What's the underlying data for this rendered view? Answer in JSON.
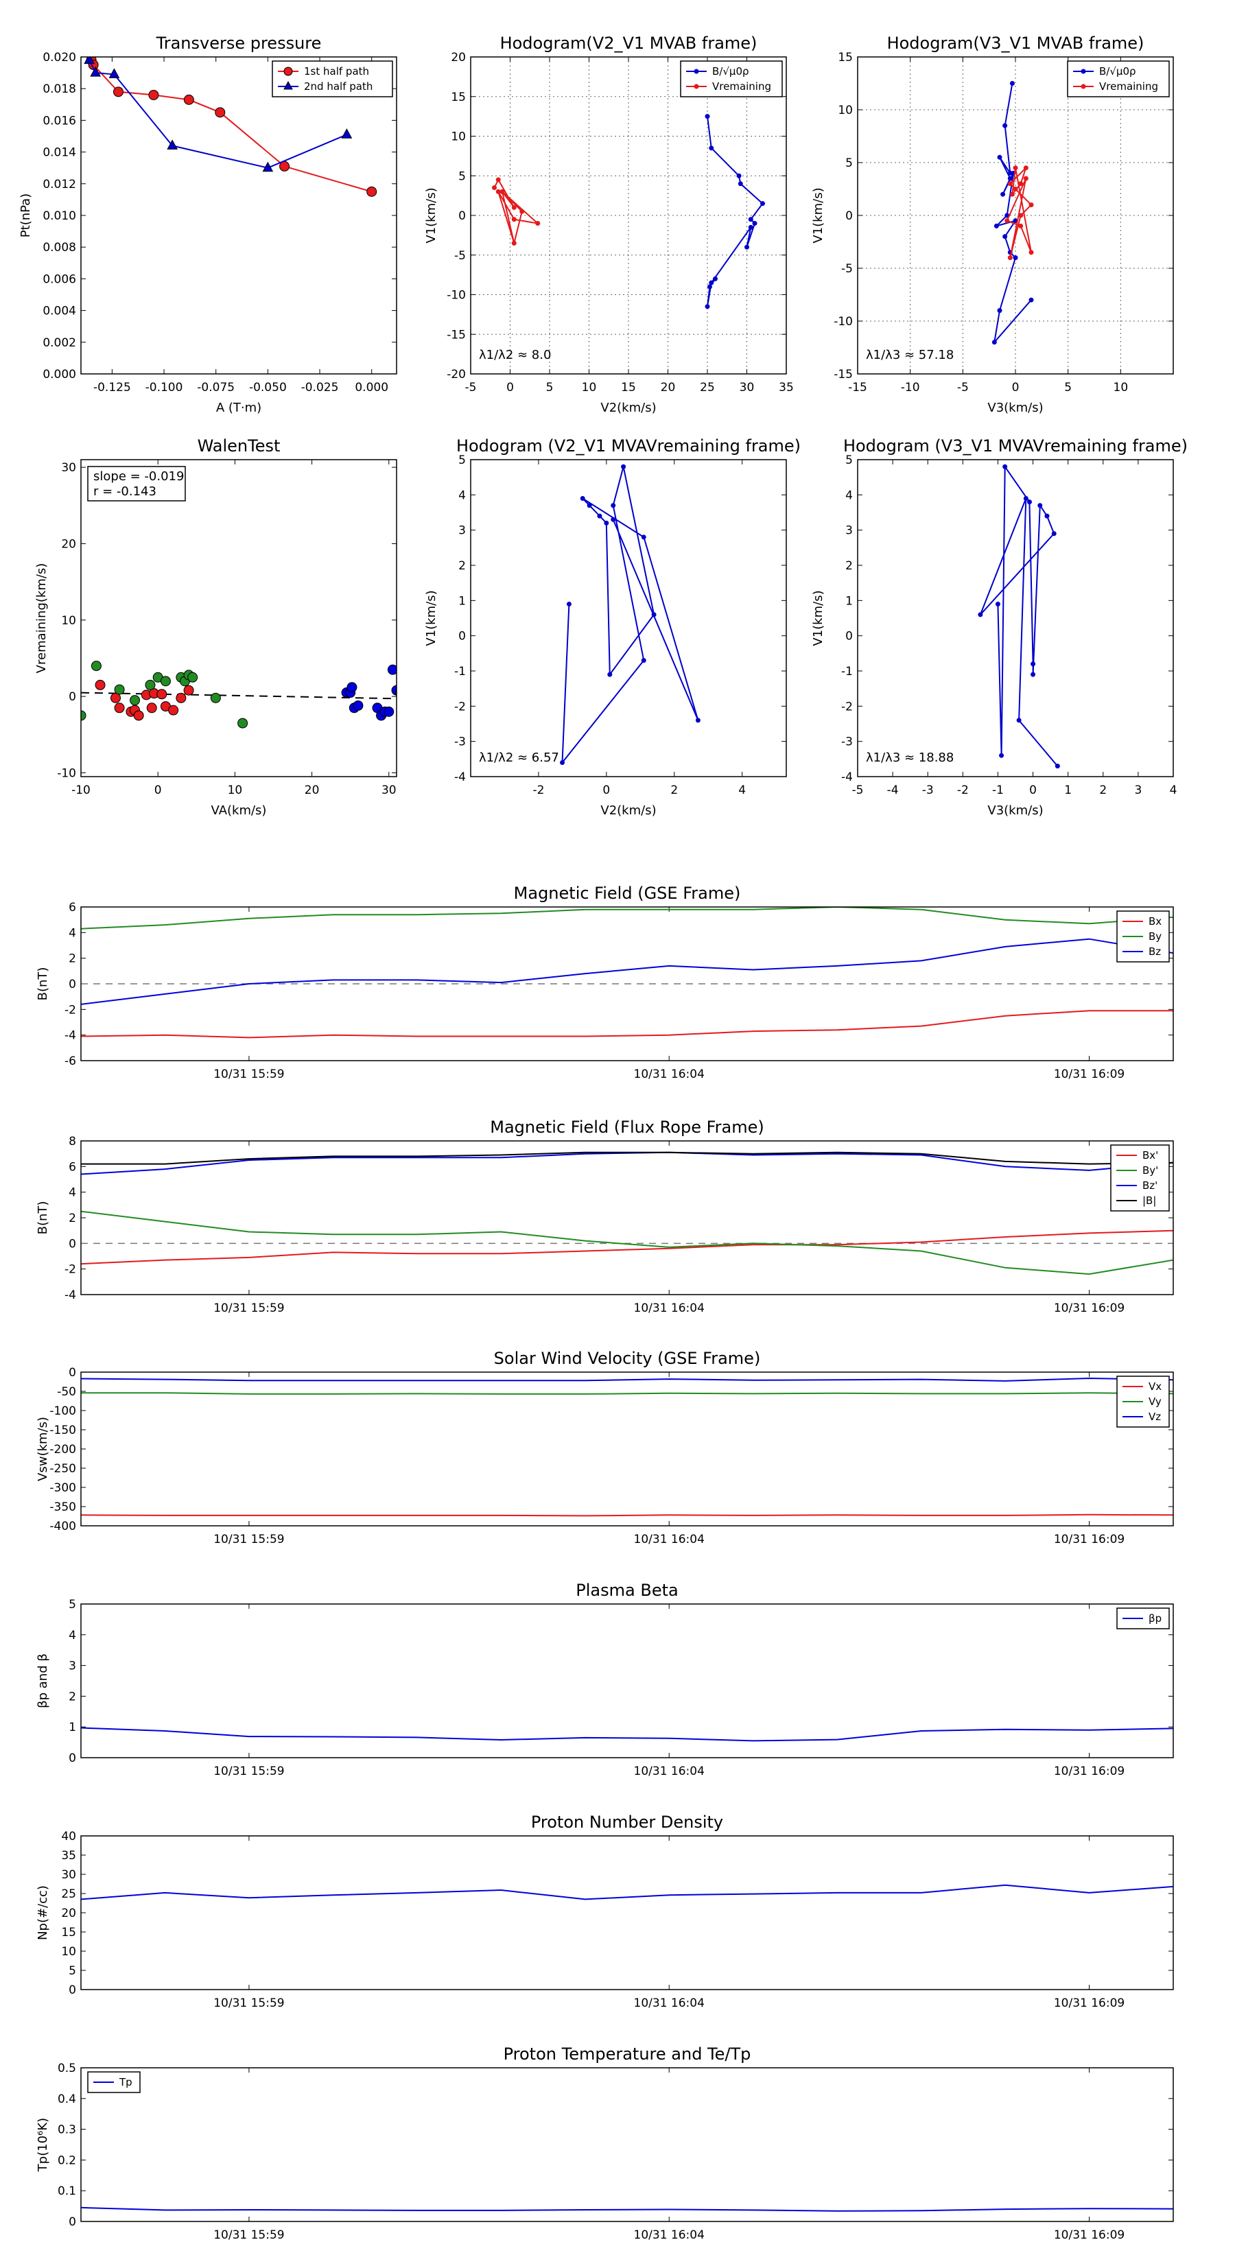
{
  "chart_data": [
    {
      "id": "tp",
      "type": "scatter",
      "title": "Transverse pressure",
      "xlabel": "A (T·m)",
      "ylabel": "Pt(nPa)",
      "xlim": [
        -0.14,
        0.012
      ],
      "ylim": [
        0.0,
        0.02
      ],
      "grid": false,
      "xticks": [
        -0.125,
        -0.1,
        -0.075,
        -0.05,
        -0.025,
        0.0
      ],
      "yticks": [
        0.0,
        0.002,
        0.004,
        0.006,
        0.008,
        0.01,
        0.012,
        0.014,
        0.016,
        0.018,
        0.02
      ],
      "x_format": 3,
      "y_format": 3,
      "legend": {
        "placement": "top-right"
      },
      "series": [
        {
          "name": "1st half path",
          "color": "#e41a1c",
          "marker": "circle",
          "x": [
            -0.135,
            -0.134,
            -0.122,
            -0.105,
            -0.088,
            -0.073,
            -0.042,
            0.0
          ],
          "y": [
            0.0198,
            0.0195,
            0.0178,
            0.0176,
            0.0173,
            0.0165,
            0.0131,
            0.0115
          ]
        },
        {
          "name": "2nd half path",
          "color": "#0000cc",
          "marker": "triangle",
          "x": [
            -0.136,
            -0.133,
            -0.124,
            -0.096,
            -0.05,
            -0.012
          ],
          "y": [
            0.0198,
            0.019,
            0.0189,
            0.0144,
            0.013,
            0.0151
          ]
        }
      ]
    },
    {
      "id": "h1",
      "type": "line",
      "title": "Hodogram(V2_V1 MVAB frame)",
      "xlabel": "V2(km/s)",
      "ylabel": "V1(km/s)",
      "xlim": [
        -5,
        35
      ],
      "ylim": [
        -20,
        20
      ],
      "grid": true,
      "xticks": [
        -5,
        0,
        5,
        10,
        15,
        20,
        25,
        30,
        35
      ],
      "yticks": [
        -20,
        -15,
        -10,
        -5,
        0,
        5,
        10,
        15,
        20
      ],
      "annotation": "λ1/λ2 ≈ 8.0",
      "annotation_pos": "bottom-left",
      "legend": {
        "placement": "top-right"
      },
      "series": [
        {
          "name": "B/√μ0ρ",
          "color": "#0000cc",
          "marker": "dot",
          "x": [
            25.0,
            25.5,
            29.0,
            29.2,
            32.0,
            30.5,
            31.0,
            30.0,
            30.5,
            25.5,
            25.0,
            25.3,
            26.0
          ],
          "y": [
            12.5,
            8.5,
            5.0,
            4.0,
            1.5,
            -0.5,
            -1.0,
            -4.0,
            -1.5,
            -8.5,
            -11.5,
            -9.0,
            -8.0
          ]
        },
        {
          "name": "Vremaining",
          "color": "#e41a1c",
          "marker": "dot",
          "x": [
            -2.0,
            -1.5,
            0.5,
            -1.0,
            1.5,
            0.5,
            -1.5,
            0.5,
            3.5,
            -1.0,
            0.5
          ],
          "y": [
            3.5,
            4.5,
            1.0,
            3.0,
            0.5,
            -3.5,
            3.0,
            -0.5,
            -1.0,
            3.0,
            -3.5
          ]
        }
      ]
    },
    {
      "id": "h2",
      "type": "line",
      "title": "Hodogram(V3_V1 MVAB frame)",
      "xlabel": "V3(km/s)",
      "ylabel": "V1(km/s)",
      "xlim": [
        -15,
        15
      ],
      "ylim": [
        -15,
        15
      ],
      "grid": true,
      "xticks": [
        -15,
        -10,
        -5,
        0,
        5,
        10
      ],
      "yticks": [
        -15,
        -10,
        -5,
        0,
        5,
        10,
        15
      ],
      "annotation": "λ1/λ3 ≈ 57.18",
      "annotation_pos": "bottom-left",
      "legend": {
        "placement": "top-right"
      },
      "series": [
        {
          "name": "B/√μ0ρ",
          "color": "#0000cc",
          "marker": "dot",
          "x": [
            -0.3,
            -1.0,
            -0.5,
            -1.5,
            -0.5,
            -1.2,
            -0.2,
            -0.8,
            -1.8,
            0.0,
            -1.0,
            -0.5,
            0.0,
            -1.5,
            -2.0,
            1.5
          ],
          "y": [
            12.5,
            8.5,
            4.0,
            5.5,
            3.5,
            2.0,
            4.0,
            0.0,
            -1.0,
            -0.5,
            -2.0,
            -3.5,
            -4.0,
            -9.0,
            -12.0,
            -8.0
          ]
        },
        {
          "name": "Vremaining",
          "color": "#e41a1c",
          "marker": "dot",
          "x": [
            0.5,
            1.0,
            -0.5,
            0.0,
            1.5,
            0.5,
            -0.5,
            1.0,
            -0.8,
            0.5,
            1.5,
            0.0,
            -0.3,
            0.5
          ],
          "y": [
            3.0,
            4.5,
            3.0,
            2.5,
            1.0,
            0.0,
            -4.0,
            3.5,
            -0.5,
            -1.0,
            -3.5,
            4.5,
            2.0,
            3.0
          ]
        }
      ]
    },
    {
      "id": "wt",
      "type": "scatter",
      "title": "WalenTest",
      "xlabel": "VA(km/s)",
      "ylabel": "Vremaining(km/s)",
      "xlim": [
        -10,
        31
      ],
      "ylim": [
        -10.5,
        31
      ],
      "grid": false,
      "xticks": [
        -10,
        0,
        10,
        20,
        30
      ],
      "yticks": [
        -10,
        0,
        10,
        20,
        30
      ],
      "annotation": [
        "slope = -0.019",
        "r = -0.143"
      ],
      "annotation_pos": "top-left",
      "fit": {
        "slope": -0.019,
        "intercept": 0.3
      },
      "series": [
        {
          "name": "",
          "color": "#e41a1c",
          "marker": "circle",
          "x": [
            -7.5,
            -5.5,
            -5.0,
            -3.5,
            -3.0,
            -2.5,
            -1.5,
            -0.8,
            -0.5,
            0.5,
            1.0,
            2.0,
            3.0,
            4.0
          ],
          "y": [
            1.5,
            -0.2,
            -1.5,
            -2.0,
            -1.8,
            -2.5,
            0.2,
            -1.5,
            0.4,
            0.3,
            -1.3,
            -1.8,
            -0.2,
            0.8
          ]
        },
        {
          "name": "",
          "color": "#228b22",
          "marker": "circle",
          "x": [
            -10.0,
            -8.0,
            -5.0,
            -3.0,
            -1.0,
            0.0,
            1.0,
            3.0,
            3.5,
            4.0,
            4.5,
            7.5,
            11.0
          ],
          "y": [
            -2.5,
            4.0,
            0.9,
            -0.5,
            1.5,
            2.5,
            2.0,
            2.5,
            2.0,
            2.8,
            2.5,
            -0.2,
            -3.5
          ]
        },
        {
          "name": "",
          "color": "#0000dd",
          "marker": "circle",
          "x": [
            24.5,
            25.0,
            25.2,
            25.5,
            26.0,
            28.5,
            29.0,
            29.5,
            30.0,
            30.5,
            31.0,
            31.5
          ],
          "y": [
            0.5,
            0.5,
            1.2,
            -1.5,
            -1.2,
            -1.5,
            -2.5,
            -2.0,
            -2.0,
            3.5,
            0.8,
            0.5
          ]
        }
      ]
    },
    {
      "id": "h3",
      "type": "line",
      "title": "Hodogram (V2_V1 MVAVremaining frame)",
      "xlabel": "V2(km/s)",
      "ylabel": "V1(km/s)",
      "xlim": [
        -4,
        5.3
      ],
      "ylim": [
        -4,
        5
      ],
      "grid": false,
      "xticks": [
        -2,
        0,
        2,
        4
      ],
      "yticks": [
        -4,
        -3,
        -2,
        -1,
        0,
        1,
        2,
        3,
        4,
        5
      ],
      "annotation": "λ1/λ2 ≈ 6.57",
      "annotation_pos": "bottom-left",
      "series": [
        {
          "name": "",
          "color": "#0000cc",
          "marker": "dot",
          "x": [
            -1.1,
            -1.3,
            1.1,
            0.2,
            0.5,
            1.4,
            0.1,
            0.0,
            -0.2,
            -0.5,
            -0.7,
            1.1,
            2.7,
            0.2
          ],
          "y": [
            0.9,
            -3.6,
            -0.7,
            3.7,
            4.8,
            0.6,
            -1.1,
            3.2,
            3.4,
            3.7,
            3.9,
            2.8,
            -2.4,
            3.3
          ]
        }
      ]
    },
    {
      "id": "h4",
      "type": "line",
      "title": "Hodogram (V3_V1 MVAVremaining frame)",
      "xlabel": "V3(km/s)",
      "ylabel": "V1(km/s)",
      "xlim": [
        -5,
        4
      ],
      "ylim": [
        -4,
        5
      ],
      "grid": false,
      "xticks": [
        -5,
        -4,
        -3,
        -2,
        -1,
        0,
        1,
        2,
        3,
        4
      ],
      "yticks": [
        -4,
        -3,
        -2,
        -1,
        0,
        1,
        2,
        3,
        4,
        5
      ],
      "annotation": "λ1/λ3 ≈ 18.88",
      "annotation_pos": "bottom-left",
      "series": [
        {
          "name": "",
          "color": "#0000cc",
          "marker": "dot",
          "x": [
            -1.0,
            -0.9,
            -0.8,
            -0.1,
            0.0,
            0.0,
            0.2,
            0.4,
            0.6,
            -1.5,
            -0.2,
            -0.4,
            0.7
          ],
          "y": [
            0.9,
            -3.4,
            4.8,
            3.8,
            -0.8,
            -1.1,
            3.7,
            3.4,
            2.9,
            0.6,
            3.9,
            -2.4,
            -3.7
          ]
        }
      ]
    },
    {
      "id": "mf",
      "type": "line",
      "title": "Magnetic Field (GSE Frame)",
      "ylabel": "B(nT)",
      "ylim": [
        -6,
        6
      ],
      "yticks": [
        -6,
        -4,
        -2,
        0,
        2,
        4,
        6
      ],
      "zero_line": true,
      "xlim": [
        0,
        13
      ],
      "xtick_pos": [
        2,
        7,
        12
      ],
      "xtick_labels": [
        "10/31 15:59",
        "10/31 16:04",
        "10/31 16:09"
      ],
      "legend": {
        "placement": "top-right"
      },
      "x": [
        0,
        1,
        2,
        3,
        4,
        5,
        6,
        7,
        8,
        9,
        10,
        11,
        12,
        13
      ],
      "series": [
        {
          "name": "Bx",
          "color": "#e41a1c",
          "values": [
            -4.1,
            -4.0,
            -4.2,
            -4.0,
            -4.1,
            -4.1,
            -4.1,
            -4.0,
            -3.7,
            -3.6,
            -3.3,
            -2.5,
            -2.1,
            -2.1
          ]
        },
        {
          "name": "By",
          "color": "#228b22",
          "values": [
            4.3,
            4.6,
            5.1,
            5.4,
            5.4,
            5.5,
            5.8,
            5.8,
            5.8,
            6.0,
            5.8,
            5.0,
            4.7,
            5.2
          ]
        },
        {
          "name": "Bz",
          "color": "#0000dd",
          "values": [
            -1.6,
            -0.8,
            0.0,
            0.3,
            0.3,
            0.1,
            0.8,
            1.4,
            1.1,
            1.4,
            1.8,
            2.9,
            3.5,
            2.4
          ]
        }
      ]
    },
    {
      "id": "mfr",
      "type": "line",
      "title": "Magnetic Field (Flux Rope Frame)",
      "ylabel": "B(nT)",
      "ylim": [
        -4,
        8
      ],
      "yticks": [
        -4,
        -2,
        0,
        2,
        4,
        6,
        8
      ],
      "zero_line": true,
      "xlim": [
        0,
        13
      ],
      "xtick_pos": [
        2,
        7,
        12
      ],
      "xtick_labels": [
        "10/31 15:59",
        "10/31 16:04",
        "10/31 16:09"
      ],
      "legend": {
        "placement": "top-right"
      },
      "x": [
        0,
        1,
        2,
        3,
        4,
        5,
        6,
        7,
        8,
        9,
        10,
        11,
        12,
        13
      ],
      "series": [
        {
          "name": "Bx'",
          "color": "#e41a1c",
          "values": [
            -1.6,
            -1.3,
            -1.1,
            -0.7,
            -0.8,
            -0.8,
            -0.6,
            -0.4,
            -0.1,
            -0.1,
            0.1,
            0.5,
            0.8,
            1.0
          ]
        },
        {
          "name": "By'",
          "color": "#228b22",
          "values": [
            2.5,
            1.7,
            0.9,
            0.7,
            0.7,
            0.9,
            0.2,
            -0.3,
            0.0,
            -0.2,
            -0.6,
            -1.9,
            -2.4,
            -1.3
          ]
        },
        {
          "name": "Bz'",
          "color": "#0000dd",
          "values": [
            5.4,
            5.8,
            6.5,
            6.7,
            6.7,
            6.7,
            7.0,
            7.1,
            6.9,
            7.0,
            6.9,
            6.0,
            5.7,
            6.3
          ]
        },
        {
          "name": "|B|",
          "color": "#000000",
          "values": [
            6.2,
            6.2,
            6.6,
            6.8,
            6.8,
            6.9,
            7.1,
            7.1,
            7.0,
            7.1,
            7.0,
            6.4,
            6.2,
            6.3
          ]
        }
      ]
    },
    {
      "id": "sw",
      "type": "line",
      "title": "Solar Wind Velocity (GSE Frame)",
      "ylabel": "Vsw(km/s)",
      "ylim": [
        -400,
        0
      ],
      "yticks": [
        -400,
        -350,
        -300,
        -250,
        -200,
        -150,
        -100,
        -50,
        0
      ],
      "xlim": [
        0,
        13
      ],
      "xtick_pos": [
        2,
        7,
        12
      ],
      "xtick_labels": [
        "10/31 15:59",
        "10/31 16:04",
        "10/31 16:09"
      ],
      "legend": {
        "placement": "top-right"
      },
      "x": [
        0,
        1,
        2,
        3,
        4,
        5,
        6,
        7,
        8,
        9,
        10,
        11,
        12,
        13
      ],
      "series": [
        {
          "name": "Vx",
          "color": "#e41a1c",
          "values": [
            -372,
            -373,
            -373,
            -373,
            -373,
            -373,
            -374,
            -372,
            -373,
            -372,
            -373,
            -373,
            -371,
            -372
          ]
        },
        {
          "name": "Vy",
          "color": "#228b22",
          "values": [
            -54,
            -54,
            -57,
            -57,
            -56,
            -57,
            -57,
            -55,
            -56,
            -55,
            -56,
            -56,
            -54,
            -56
          ]
        },
        {
          "name": "Vz",
          "color": "#0000dd",
          "values": [
            -17,
            -19,
            -22,
            -22,
            -22,
            -22,
            -22,
            -18,
            -21,
            -20,
            -19,
            -23,
            -16,
            -20
          ]
        }
      ]
    },
    {
      "id": "pb",
      "type": "line",
      "title": "Plasma Beta",
      "ylabel": "βp and β",
      "ylim": [
        0,
        5
      ],
      "yticks": [
        0,
        1,
        2,
        3,
        4,
        5
      ],
      "xlim": [
        0,
        13
      ],
      "xtick_pos": [
        2,
        7,
        12
      ],
      "xtick_labels": [
        "10/31 15:59",
        "10/31 16:04",
        "10/31 16:09"
      ],
      "legend": {
        "placement": "top-right"
      },
      "x": [
        0,
        1,
        2,
        3,
        4,
        5,
        6,
        7,
        8,
        9,
        10,
        11,
        12,
        13
      ],
      "series": [
        {
          "name": "βp",
          "color": "#0000dd",
          "values": [
            0.97,
            0.87,
            0.69,
            0.68,
            0.66,
            0.58,
            0.65,
            0.63,
            0.55,
            0.59,
            0.87,
            0.92,
            0.9,
            0.95
          ]
        }
      ]
    },
    {
      "id": "np",
      "type": "line",
      "title": "Proton Number Density",
      "ylabel": "Np(#/cc)",
      "ylim": [
        0,
        40
      ],
      "yticks": [
        0,
        5,
        10,
        15,
        20,
        25,
        30,
        35,
        40
      ],
      "xlim": [
        0,
        13
      ],
      "xtick_pos": [
        2,
        7,
        12
      ],
      "xtick_labels": [
        "10/31 15:59",
        "10/31 16:04",
        "10/31 16:09"
      ],
      "x": [
        0,
        1,
        2,
        3,
        4,
        5,
        6,
        7,
        8,
        9,
        10,
        11,
        12,
        13
      ],
      "series": [
        {
          "name": "",
          "color": "#0000dd",
          "values": [
            23.5,
            25.2,
            23.9,
            24.6,
            25.2,
            25.9,
            23.5,
            24.6,
            24.9,
            25.2,
            25.2,
            27.2,
            25.2,
            26.8
          ]
        }
      ]
    },
    {
      "id": "tpp",
      "type": "line",
      "title": "Proton Temperature and Te/Tp",
      "ylabel": "Tp(10⁶K)",
      "ylim": [
        0,
        0.5
      ],
      "yticks": [
        0,
        0.1,
        0.2,
        0.3,
        0.4,
        0.5
      ],
      "xlim": [
        0,
        13
      ],
      "xtick_pos": [
        2,
        7,
        12
      ],
      "xtick_labels": [
        "10/31 15:59",
        "10/31 16:04",
        "10/31 16:09"
      ],
      "legend": {
        "placement": "top-left"
      },
      "x": [
        0,
        1,
        2,
        3,
        4,
        5,
        6,
        7,
        8,
        9,
        10,
        11,
        12,
        13
      ],
      "series": [
        {
          "name": "Tp",
          "color": "#0000dd",
          "values": [
            0.045,
            0.037,
            0.038,
            0.037,
            0.036,
            0.036,
            0.038,
            0.039,
            0.037,
            0.034,
            0.035,
            0.04,
            0.042,
            0.041
          ]
        }
      ]
    }
  ]
}
